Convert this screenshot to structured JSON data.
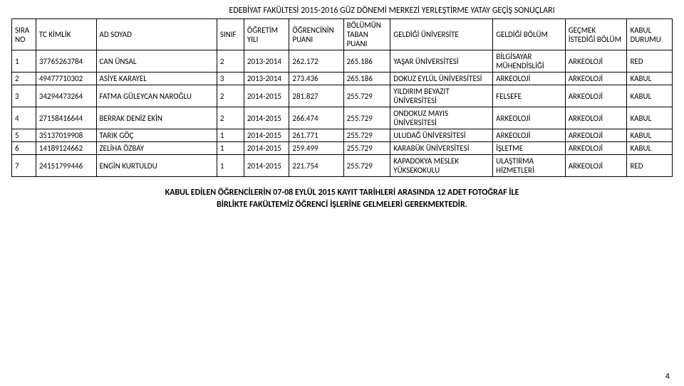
{
  "title": "EDEBİYAT FAKÜLTESİ 2015-2016 GÜZ DÖNEMİ MERKEZİ YERLEŞTİRME YATAY GEÇİŞ SONUÇLARI",
  "columns": [
    "SIRA NO",
    "TC KİMLİK",
    "AD SOYAD",
    "SINIF",
    "ÖĞRETİM YILI",
    "ÖĞRENCİNİN PUANI",
    "BÖLÜMÜN TABAN PUANI",
    "GELDİĞİ ÜNİVERSİTE",
    "GELDİĞİ BÖLÜM",
    "GEÇMEK İSTEDİĞİ BÖLÜM",
    "KABUL DURUMU"
  ],
  "rows": [
    {
      "sira": "1",
      "tc": "37765263784",
      "ad": "CAN ÜNSAL",
      "sinif": "2",
      "yil": "2013-2014",
      "opuan": "262.172",
      "tpuan": "265.186",
      "uni": "YAŞAR ÜNİVERSİTESİ",
      "gbolum": "BİLGİSAYAR MÜHENDİSLİĞİ",
      "ibolum": "ARKEOLOJİ",
      "durum": "RED"
    },
    {
      "sira": "2",
      "tc": "49477710302",
      "ad": "ASİYE KARAYEL",
      "sinif": "3",
      "yil": "2013-2014",
      "opuan": "273.436",
      "tpuan": "265.186",
      "uni": "DOKUZ EYLÜL ÜNİVERSİTESİ",
      "gbolum": "ARKEOLOJİ",
      "ibolum": "ARKEOLOJİ",
      "durum": "KABUL"
    },
    {
      "sira": "3",
      "tc": "34294473264",
      "ad": "FATMA GÜLEYCAN NAROĞLU",
      "sinif": "2",
      "yil": "2014-2015",
      "opuan": "281.827",
      "tpuan": "255.729",
      "uni": "YILDIRIM BEYAZIT ÜNİVERSİTESİ",
      "gbolum": "FELSEFE",
      "ibolum": "ARKEOLOJİ",
      "durum": "KABUL"
    },
    {
      "sira": "4",
      "tc": "27158416644",
      "ad": "BERRAK DENİZ EKİN",
      "sinif": "2",
      "yil": "2014-2015",
      "opuan": "266.474",
      "tpuan": "255.729",
      "uni": "ONDOKUZ MAYIS ÜNİVERSİTESİ",
      "gbolum": "ARKEOLOJİ",
      "ibolum": "ARKEOLOJİ",
      "durum": "KABUL"
    },
    {
      "sira": "5",
      "tc": "35137019908",
      "ad": "TARIK GÖÇ",
      "sinif": "1",
      "yil": "2014-2015",
      "opuan": "261.771",
      "tpuan": "255.729",
      "uni": "ULUDAĞ ÜNİVERSİTESİ",
      "gbolum": "ARKEOLOJİ",
      "ibolum": "ARKEOLOJİ",
      "durum": "KABUL"
    },
    {
      "sira": "6",
      "tc": "14189124662",
      "ad": "ZELİHA ÖZBAY",
      "sinif": "1",
      "yil": "2014-2015",
      "opuan": "259.499",
      "tpuan": "255.729",
      "uni": "KARABÜK ÜNİVERSİTESİ",
      "gbolum": "İŞLETME",
      "ibolum": "ARKEOLOJİ",
      "durum": "KABUL"
    },
    {
      "sira": "7",
      "tc": "24151799446",
      "ad": "ENGİN KURTULDU",
      "sinif": "1",
      "yil": "2014-2015",
      "opuan": "221.754",
      "tpuan": "255.729",
      "uni": "KAPADOKYA MESLEK YÜKSEKOKULU",
      "gbolum": "ULAŞTIRMA HİZMETLERİ",
      "ibolum": "ARKEOLOJİ",
      "durum": "RED"
    }
  ],
  "footer_line1": "KABUL EDİLEN ÖĞRENCİLERİN 07-08 EYLÜL 2015 KAYIT TARİHLERİ ARASINDA 12 ADET FOTOĞRAF İLE",
  "footer_line2": "BİRLİKTE FAKÜLTEMİZ ÖĞRENCİ İŞLERİNE GELMELERİ GEREKMEKTEDİR.",
  "page_number": "4"
}
